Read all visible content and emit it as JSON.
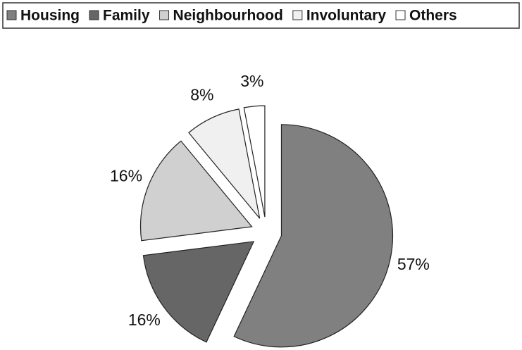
{
  "chart_data": {
    "type": "pie",
    "categories": [
      "Housing",
      "Family",
      "Neighbourhood",
      "Involuntary",
      "Others"
    ],
    "values": [
      57,
      16,
      16,
      8,
      3
    ],
    "value_labels": [
      "57%",
      "16%",
      "16%",
      "8%",
      "3%"
    ],
    "colors": [
      "#808080",
      "#666666",
      "#d0d0d0",
      "#f0f0f0",
      "#ffffff"
    ],
    "legend": "top"
  }
}
